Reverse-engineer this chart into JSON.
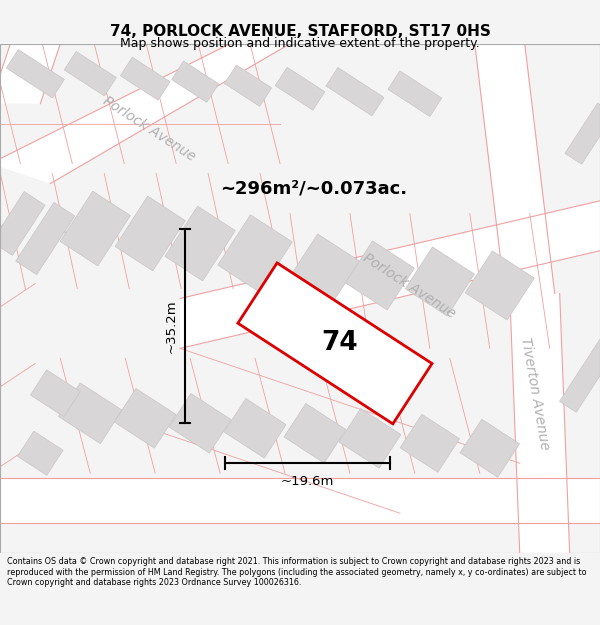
{
  "title": "74, PORLOCK AVENUE, STAFFORD, ST17 0HS",
  "subtitle": "Map shows position and indicative extent of the property.",
  "area_label": "~296m²/~0.073ac.",
  "number_label": "74",
  "width_label": "~19.6m",
  "height_label": "~35.2m",
  "footer_text": "Contains OS data © Crown copyright and database right 2021. This information is subject to Crown copyright and database rights 2023 and is reproduced with the permission of HM Land Registry. The polygons (including the associated geometry, namely x, y co-ordinates) are subject to Crown copyright and database rights 2023 Ordnance Survey 100026316.",
  "bg_color": "#f5f4f4",
  "map_bg": "#f0eeee",
  "road_color": "#ffffff",
  "plot_outline_color": "#dd0000",
  "building_color": "#d8d6d6",
  "road_line_color": "#f0a0a0",
  "street_label_color": "#b0b0b0",
  "title_fontsize": 11,
  "subtitle_fontsize": 9,
  "footer_fontsize": 5.8
}
